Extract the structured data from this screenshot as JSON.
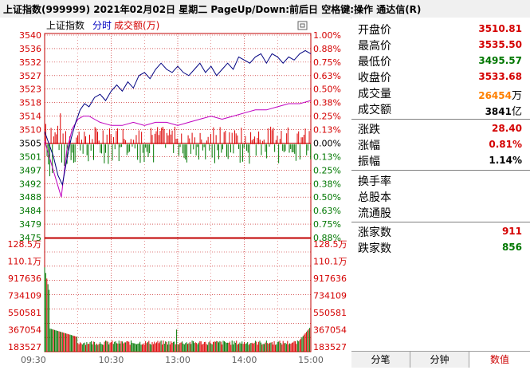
{
  "title_bar": {
    "text": "上证指数(999999)  2021年02月02日  星期二  PageUp/Down:前后日  空格键:操作  通达信(R)"
  },
  "chart": {
    "header": {
      "name": "上证指数",
      "tab_time": "分时",
      "tab_amount": "成交额(万)"
    },
    "price_ticks": [
      "3540",
      "3536",
      "3532",
      "3527",
      "3523",
      "3518",
      "3514",
      "3510",
      "3505",
      "3501",
      "3497",
      "3492",
      "3488",
      "3484",
      "3479",
      "3475"
    ],
    "pct_ticks": [
      "1.00%",
      "0.88%",
      "0.75%",
      "0.63%",
      "0.50%",
      "0.38%",
      "0.25%",
      "0.13%",
      "0.00%",
      "0.13%",
      "0.25%",
      "0.38%",
      "0.50%",
      "0.63%",
      "0.75%",
      "0.88%"
    ],
    "volume_ticks": [
      "128.5万",
      "110.1万",
      "917636",
      "734109",
      "550581",
      "367054",
      "183527"
    ],
    "time_ticks": [
      "09:30",
      "10:30",
      "13:00",
      "14:00",
      "15:00"
    ],
    "colors": {
      "price_line": "#000080",
      "avg_line": "#c000c0",
      "up": "#dd0000",
      "down": "#007700",
      "grid": "#c00000",
      "axis_red": "#d40000",
      "axis_green": "#007700"
    }
  },
  "chart_data": {
    "type": "line",
    "title": "",
    "prev_close": 3505.0,
    "ylim": [
      3475,
      3540
    ],
    "x_range": [
      "09:30",
      "15:00"
    ],
    "series": [
      {
        "name": "",
        "color": "#000080",
        "x": [
          0,
          4,
          8,
          12,
          16,
          20,
          24,
          28,
          32,
          36,
          40,
          45,
          50,
          55,
          60,
          65,
          70,
          75,
          80,
          85,
          90,
          95,
          100,
          105,
          110,
          115,
          120,
          125,
          130,
          135,
          140,
          145,
          150,
          155,
          160,
          165,
          170,
          175,
          180,
          185,
          190,
          195,
          200,
          205,
          210,
          215,
          220,
          225,
          230,
          235,
          240
        ],
        "y": [
          3509,
          3505,
          3501,
          3495,
          3492,
          3500,
          3507,
          3512,
          3516,
          3518,
          3517,
          3520,
          3521,
          3519,
          3522,
          3524,
          3522,
          3525,
          3523,
          3527,
          3528,
          3526,
          3529,
          3531,
          3529,
          3528,
          3530,
          3528,
          3527,
          3529,
          3531,
          3528,
          3530,
          3527,
          3529,
          3531,
          3529,
          3533,
          3532,
          3531,
          3533,
          3534,
          3531,
          3534,
          3533,
          3531,
          3533,
          3532,
          3534,
          3535,
          3534
        ]
      },
      {
        "name": "",
        "color": "#c000c0",
        "x": [
          0,
          5,
          10,
          15,
          20,
          25,
          30,
          35,
          40,
          45,
          50,
          60,
          70,
          80,
          90,
          100,
          110,
          120,
          130,
          140,
          150,
          160,
          170,
          180,
          190,
          200,
          210,
          220,
          230,
          240
        ],
        "y": [
          3506,
          3500,
          3494,
          3488,
          3503,
          3510,
          3513,
          3514,
          3514,
          3513,
          3512,
          3511,
          3511,
          3512,
          3511,
          3512,
          3512,
          3511,
          3512,
          3513,
          3514,
          3513,
          3514,
          3515,
          3516,
          3516,
          3517,
          3518,
          3518,
          3519
        ]
      }
    ],
    "volume": {
      "ylim": [
        0,
        1285000
      ]
    }
  },
  "info": {
    "open": {
      "label": "开盘价",
      "value": "3510.81"
    },
    "high": {
      "label": "最高价",
      "value": "3535.50"
    },
    "low": {
      "label": "最低价",
      "value": "3495.57"
    },
    "close": {
      "label": "收盘价",
      "value": "3533.68"
    },
    "volume": {
      "label": "成交量",
      "value": "26454",
      "unit": "万"
    },
    "amount": {
      "label": "成交额",
      "value": "3841",
      "unit": "亿"
    },
    "change": {
      "label": "涨跌",
      "value": "28.40"
    },
    "change_pct": {
      "label": "涨幅",
      "value": "0.81%"
    },
    "amplitude": {
      "label": "振幅",
      "value": "1.14%"
    },
    "turnover": {
      "label": "换手率"
    },
    "total_shares": {
      "label": "总股本"
    },
    "float_shares": {
      "label": "流通股"
    },
    "advancers": {
      "label": "涨家数",
      "value": "911"
    },
    "decliners": {
      "label": "跌家数",
      "value": "856"
    }
  },
  "tabs": [
    {
      "label": "分笔"
    },
    {
      "label": "分钟"
    },
    {
      "label": "数值"
    }
  ]
}
